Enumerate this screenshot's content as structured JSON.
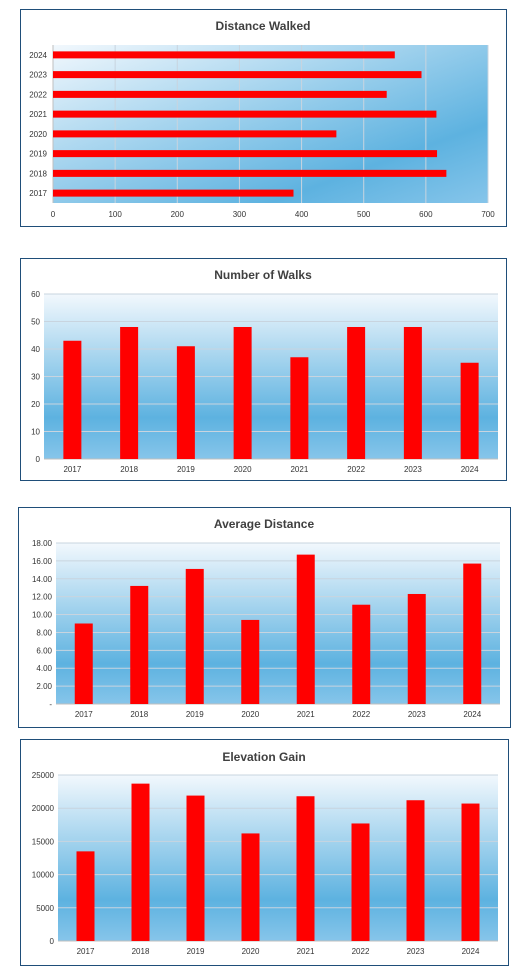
{
  "chart_data": [
    {
      "id": "distance",
      "type": "bar",
      "orientation": "horizontal",
      "title": "Distance Walked",
      "categories": [
        "2017",
        "2018",
        "2019",
        "2020",
        "2021",
        "2022",
        "2023",
        "2024"
      ],
      "values": [
        387,
        633,
        618,
        456,
        617,
        537,
        593,
        550
      ],
      "xlim": [
        0,
        700
      ],
      "ticks": [
        "0",
        "100",
        "200",
        "300",
        "400",
        "500",
        "600",
        "700"
      ],
      "grid": true,
      "bar_color": "#ff0000"
    },
    {
      "id": "walks",
      "type": "bar",
      "title": "Number of Walks",
      "categories": [
        "2017",
        "2018",
        "2019",
        "2020",
        "2021",
        "2022",
        "2023",
        "2024"
      ],
      "values": [
        43,
        48,
        41,
        48,
        37,
        48,
        48,
        35
      ],
      "ylim": [
        0,
        60
      ],
      "ticks": [
        "0",
        "10",
        "20",
        "30",
        "40",
        "50",
        "60"
      ],
      "grid": true,
      "bar_color": "#ff0000"
    },
    {
      "id": "average",
      "type": "bar",
      "title": "Average Distance",
      "categories": [
        "2017",
        "2018",
        "2019",
        "2020",
        "2021",
        "2022",
        "2023",
        "2024"
      ],
      "values": [
        9.0,
        13.2,
        15.1,
        9.4,
        16.7,
        11.1,
        12.3,
        15.7
      ],
      "ylim": [
        0,
        18
      ],
      "ticks": [
        "-",
        "2.00",
        "4.00",
        "6.00",
        "8.00",
        "10.00",
        "12.00",
        "14.00",
        "16.00",
        "18.00"
      ],
      "grid": true,
      "bar_color": "#ff0000"
    },
    {
      "id": "elevation",
      "type": "bar",
      "title": "Elevation Gain",
      "categories": [
        "2017",
        "2018",
        "2019",
        "2020",
        "2021",
        "2022",
        "2023",
        "2024"
      ],
      "values": [
        13500,
        23700,
        21900,
        16200,
        21800,
        17700,
        21200,
        20700
      ],
      "ylim": [
        0,
        25000
      ],
      "ticks": [
        "0",
        "5000",
        "10000",
        "15000",
        "20000",
        "25000"
      ],
      "grid": true,
      "bar_color": "#ff0000"
    }
  ]
}
